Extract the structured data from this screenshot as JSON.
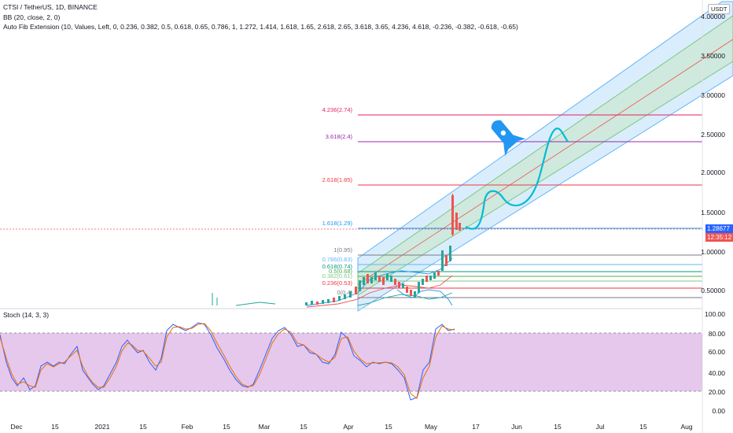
{
  "header": {
    "symbol_line": "CTSI / TetherUS, 1D, BINANCE",
    "bb_line": "BB (20, close, 2, 0)",
    "fib_line": "Auto Fib Extension (10, Values, Left, 0, 0.236, 0.382, 0.5, 0.618, 0.65, 0.786, 1, 1.272, 1.414, 1.618, 1.65, 2.618, 2.65, 3.618, 3.65, 4.236, 4.618, -0.236, -0.382, -0.618, -0.65)"
  },
  "currency_button": "USDT",
  "price_axis": [
    "4.00000",
    "3.50000",
    "3.00000",
    "2.50000",
    "2.00000",
    "1.50000",
    "1.00000",
    "0.50000"
  ],
  "last_price": "1.28677",
  "countdown": "12:35:12",
  "fib_levels": [
    {
      "label": "4.236(2.74)",
      "color": "#e91e63"
    },
    {
      "label": "3.618(2.4)",
      "color": "#9c27b0"
    },
    {
      "label": "2.618(1.85)",
      "color": "#f23645"
    },
    {
      "label": "1.618(1.29)",
      "color": "#2196f3"
    },
    {
      "label": "1(0.95)",
      "color": "#787b86"
    },
    {
      "label": "0.786(0.83)",
      "color": "#64b5f6"
    },
    {
      "label": "0.618(0.74)",
      "color": "#089981"
    },
    {
      "label": "0.5(0.68)",
      "color": "#4caf50"
    },
    {
      "label": "0.382(0.61)",
      "color": "#81c784"
    },
    {
      "label": "0.236(0.53)",
      "color": "#f23645"
    },
    {
      "label": "0(0.4)",
      "color": "#787b86"
    }
  ],
  "stoch": {
    "label": "Stoch (14, 3, 3)",
    "axis": [
      "100.00",
      "80.00",
      "60.00",
      "40.00",
      "20.00",
      "0.00"
    ]
  },
  "time_axis": [
    "Dec",
    "15",
    "2021",
    "15",
    "Feb",
    "15",
    "Mar",
    "15",
    "Apr",
    "15",
    "May",
    "17",
    "Jun",
    "15",
    "Jul",
    "15",
    "Aug"
  ],
  "colors": {
    "up": "#26a69a",
    "down": "#ef5350",
    "channel_fill": "#bbdefb",
    "stoch_band": "#e1bee7",
    "rocket": "#2196f3",
    "arrow": "#00bcd4"
  },
  "icons": [
    "rocket-icon"
  ]
}
